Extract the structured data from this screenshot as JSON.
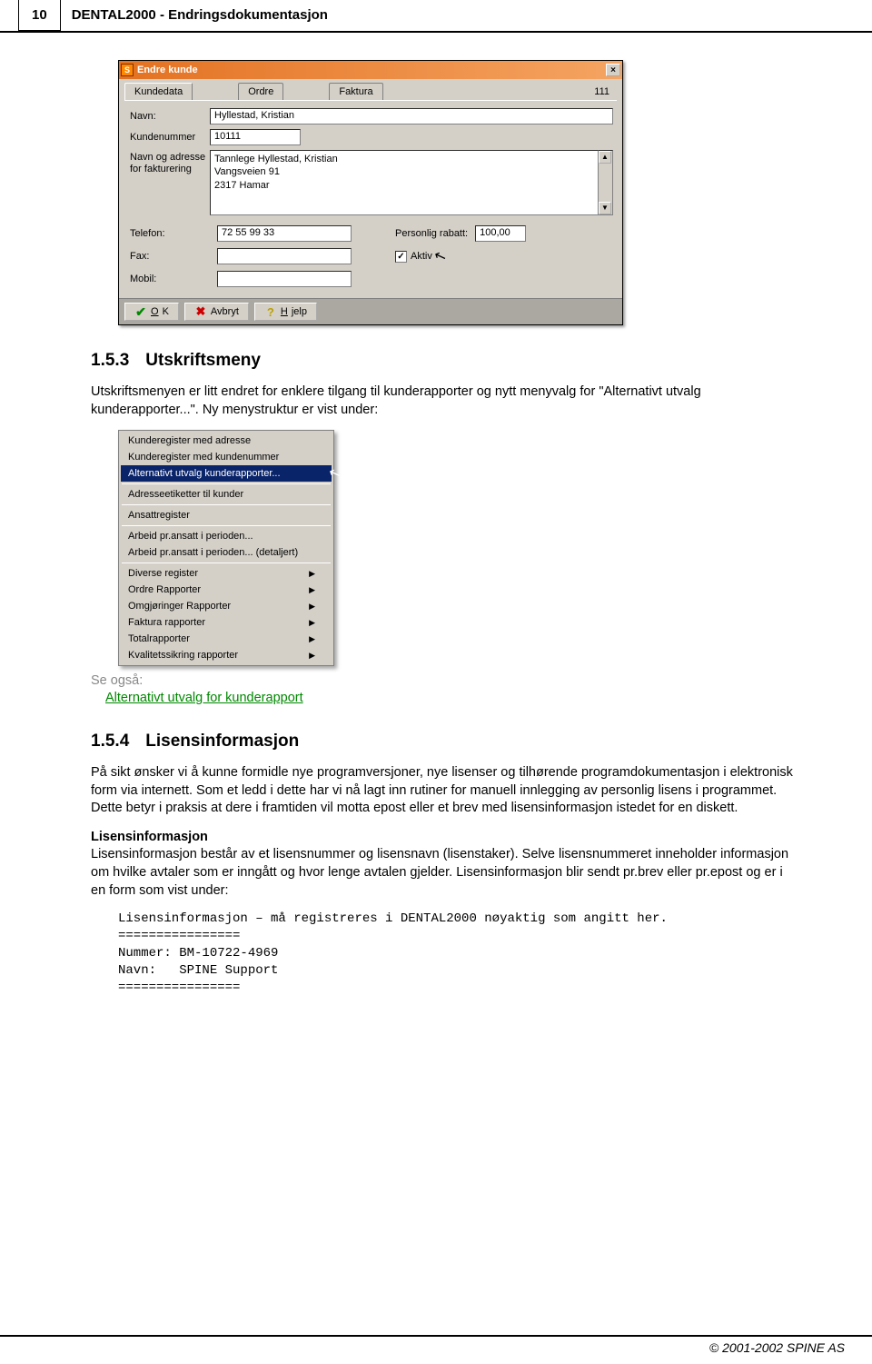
{
  "header": {
    "page_number": "10",
    "title": "DENTAL2000 - Endringsdokumentasjon"
  },
  "dialog": {
    "title": "Endre kunde",
    "tabs": {
      "t1": "Kundedata",
      "t2": "Ordre",
      "t3": "Faktura"
    },
    "top_right": "111",
    "labels": {
      "navn": "Navn:",
      "kundenr": "Kundenummer",
      "addr": "Navn og adresse for fakturering",
      "telefon": "Telefon:",
      "fax": "Fax:",
      "mobil": "Mobil:",
      "rabatt": "Personlig rabatt:",
      "aktiv": "Aktiv"
    },
    "values": {
      "navn": "Hyllestad, Kristian",
      "kundenr": "10111",
      "addr_l1": "Tannlege Hyllestad, Kristian",
      "addr_l2": "Vangsveien 91",
      "addr_l3": "2317 Hamar",
      "telefon": "72 55 99 33",
      "fax": "",
      "mobil": "",
      "rabatt": "100,00"
    },
    "buttons": {
      "ok": "OK",
      "avbryt": "Avbryt",
      "hjelp": "Hjelp"
    }
  },
  "section_153": {
    "num": "1.5.3",
    "title": "Utskriftsmeny",
    "p1": "Utskriftsmenyen er litt endret for enklere tilgang til kunderapporter og nytt menyvalg for \"Alternativt utvalg kunderapporter...\". Ny menystruktur er vist under:"
  },
  "menu": {
    "items": [
      "Kunderegister med adresse",
      "Kunderegister med kundenummer",
      "Alternativt utvalg kunderapporter...",
      "Adresseetiketter til kunder",
      "Ansattregister",
      "Arbeid pr.ansatt i perioden...",
      "Arbeid pr.ansatt i perioden... (detaljert)",
      "Diverse register",
      "Ordre Rapporter",
      "Omgjøringer Rapporter",
      "Faktura rapporter",
      "Totalrapporter",
      "Kvalitetssikring rapporter"
    ],
    "selected_index": 2,
    "submenu_from_index": 7
  },
  "see_also": {
    "label": "Se også:",
    "link": "Alternativt utvalg for kunderapport"
  },
  "section_154": {
    "num": "1.5.4",
    "title": "Lisensinformasjon",
    "p1": "På sikt ønsker vi å kunne formidle nye programversjoner, nye lisenser og tilhørende programdokumentasjon i elektronisk form via internett. Som et ledd i dette har vi nå lagt inn rutiner for manuell innlegging av personlig lisens i programmet. Dette betyr i praksis at dere i framtiden vil motta epost eller et brev med lisensinformasjon istedet for en diskett.",
    "sub_heading": "Lisensinformasjon",
    "p2": "Lisensinformasjon består av et lisensnummer og lisensnavn (lisenstaker). Selve lisensnummeret inneholder informasjon om hvilke avtaler som er inngått og hvor lenge avtalen gjelder. Lisensinformasjon blir sendt pr.brev eller pr.epost og er i en form som vist under:",
    "code_l1": "Lisensinformasjon – må registreres i DENTAL2000 nøyaktig som angitt her.",
    "code_l2": "================",
    "code_l3": "Nummer: BM-10722-4969",
    "code_l4": "Navn:   SPINE Support",
    "code_l5": "================"
  },
  "footer": "© 2001-2002  SPINE AS"
}
